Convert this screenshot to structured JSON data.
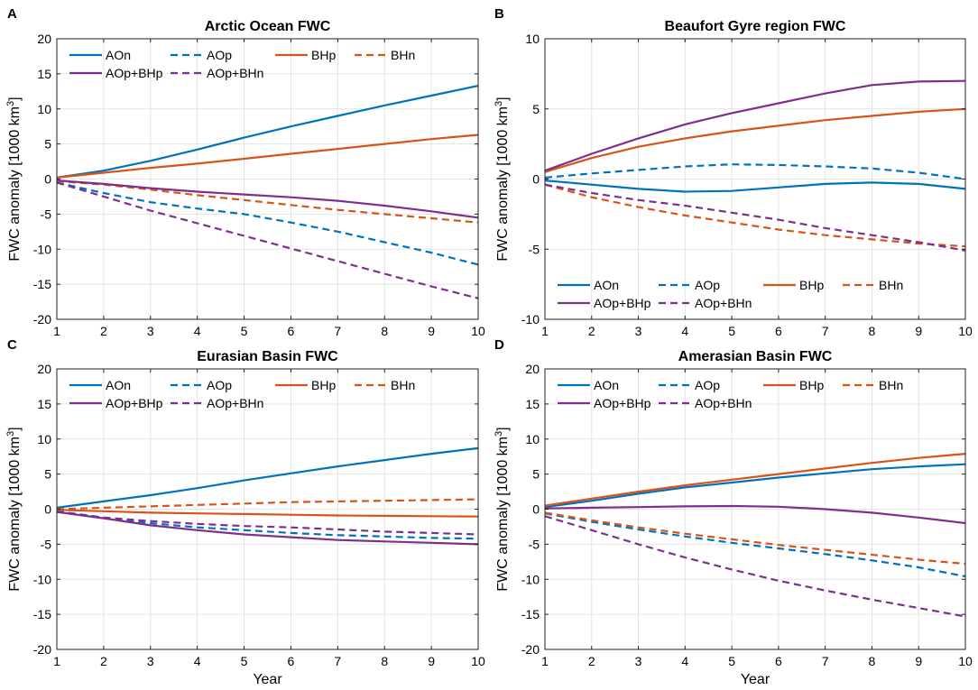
{
  "colors": {
    "AO": "#0072bd",
    "BH": "#d95319",
    "AOBH": "#7e2f8e"
  },
  "chart_data": [
    {
      "type": "line",
      "letter": "A",
      "title": "Arctic Ocean FWC",
      "xlabel": "",
      "ylabel": "FWC anomaly [1000 km",
      "ylabel_sup": "3",
      "ylabel_end": "]",
      "xlim": [
        1,
        10
      ],
      "ylim": [
        -20,
        20
      ],
      "xticks": [
        "1",
        "2",
        "3",
        "4",
        "5",
        "6",
        "7",
        "8",
        "9",
        "10"
      ],
      "yticks": [
        "20",
        "15",
        "10",
        "5",
        "0",
        "-5",
        "-10",
        "-15",
        "-20"
      ],
      "ytick_values": [
        20,
        15,
        10,
        5,
        0,
        -5,
        -10,
        -15,
        -20
      ],
      "legend": {
        "position": "top",
        "labels": [
          "AOn",
          "AOp",
          "BHp",
          "BHn",
          "AOp+BHp",
          "AOp+BHn"
        ]
      },
      "x": [
        1,
        2,
        3,
        4,
        5,
        6,
        7,
        8,
        9,
        10
      ],
      "series": [
        {
          "name": "AOn",
          "color": "AO",
          "dash": false,
          "values": [
            0.2,
            1.2,
            2.6,
            4.2,
            5.9,
            7.5,
            9.0,
            10.5,
            11.9,
            13.3
          ]
        },
        {
          "name": "AOp",
          "color": "AO",
          "dash": true,
          "values": [
            -0.5,
            -2.0,
            -3.3,
            -4.2,
            -5.0,
            -6.2,
            -7.5,
            -9.0,
            -10.5,
            -12.2
          ]
        },
        {
          "name": "BHp",
          "color": "BH",
          "dash": false,
          "values": [
            0.2,
            0.9,
            1.6,
            2.2,
            2.9,
            3.6,
            4.3,
            5.0,
            5.7,
            6.3
          ]
        },
        {
          "name": "BHn",
          "color": "BH",
          "dash": true,
          "values": [
            -0.3,
            -0.8,
            -1.5,
            -2.3,
            -3.0,
            -3.7,
            -4.4,
            -5.0,
            -5.6,
            -6.2
          ]
        },
        {
          "name": "AOp+BHp",
          "color": "AOBH",
          "dash": false,
          "values": [
            -0.2,
            -0.7,
            -1.3,
            -1.8,
            -2.2,
            -2.6,
            -3.1,
            -3.8,
            -4.6,
            -5.5
          ]
        },
        {
          "name": "AOp+BHn",
          "color": "AOBH",
          "dash": true,
          "values": [
            -0.5,
            -2.5,
            -4.5,
            -6.3,
            -8.1,
            -9.9,
            -11.7,
            -13.5,
            -15.3,
            -17.0
          ]
        }
      ]
    },
    {
      "type": "line",
      "letter": "B",
      "title": "Beaufort Gyre region FWC",
      "xlabel": "",
      "ylabel": "FWC anomaly [1000 km",
      "ylabel_sup": "3",
      "ylabel_end": "]",
      "xlim": [
        1,
        10
      ],
      "ylim": [
        -10,
        10
      ],
      "xticks": [
        "1",
        "2",
        "3",
        "4",
        "5",
        "6",
        "7",
        "8",
        "9",
        "10"
      ],
      "yticks": [
        "10",
        "5",
        "0",
        "-5",
        "-10"
      ],
      "ytick_values": [
        10,
        5,
        0,
        -5,
        -10
      ],
      "legend": {
        "position": "bottom",
        "labels": [
          "AOn",
          "AOp",
          "BHp",
          "BHn",
          "AOp+BHp",
          "AOp+BHn"
        ]
      },
      "x": [
        1,
        2,
        3,
        4,
        5,
        6,
        7,
        8,
        9,
        10
      ],
      "series": [
        {
          "name": "AOn",
          "color": "AO",
          "dash": false,
          "values": [
            -0.1,
            -0.4,
            -0.7,
            -0.9,
            -0.85,
            -0.6,
            -0.35,
            -0.25,
            -0.35,
            -0.7
          ]
        },
        {
          "name": "AOp",
          "color": "AO",
          "dash": true,
          "values": [
            0.1,
            0.4,
            0.65,
            0.9,
            1.05,
            1.0,
            0.9,
            0.75,
            0.45,
            0.0
          ]
        },
        {
          "name": "BHp",
          "color": "BH",
          "dash": false,
          "values": [
            0.5,
            1.5,
            2.3,
            2.9,
            3.4,
            3.8,
            4.2,
            4.5,
            4.8,
            5.0
          ]
        },
        {
          "name": "BHn",
          "color": "BH",
          "dash": true,
          "values": [
            -0.4,
            -1.3,
            -2.0,
            -2.6,
            -3.1,
            -3.6,
            -4.0,
            -4.3,
            -4.6,
            -4.8
          ]
        },
        {
          "name": "AOp+BHp",
          "color": "AOBH",
          "dash": false,
          "values": [
            0.6,
            1.8,
            2.9,
            3.9,
            4.7,
            5.4,
            6.1,
            6.7,
            6.95,
            7.0
          ]
        },
        {
          "name": "AOp+BHn",
          "color": "AOBH",
          "dash": true,
          "values": [
            -0.4,
            -1.0,
            -1.5,
            -1.9,
            -2.4,
            -2.9,
            -3.5,
            -4.0,
            -4.5,
            -5.1
          ]
        }
      ]
    },
    {
      "type": "line",
      "letter": "C",
      "title": "Eurasian Basin FWC",
      "xlabel": "Year",
      "ylabel": "FWC anomaly [1000 km",
      "ylabel_sup": "3",
      "ylabel_end": "]",
      "xlim": [
        1,
        10
      ],
      "ylim": [
        -20,
        20
      ],
      "xticks": [
        "1",
        "2",
        "3",
        "4",
        "5",
        "6",
        "7",
        "8",
        "9",
        "10"
      ],
      "yticks": [
        "20",
        "15",
        "10",
        "5",
        "0",
        "-5",
        "-10",
        "-15",
        "-20"
      ],
      "ytick_values": [
        20,
        15,
        10,
        5,
        0,
        -5,
        -10,
        -15,
        -20
      ],
      "legend": {
        "position": "top",
        "labels": [
          "AOn",
          "AOp",
          "BHp",
          "BHn",
          "AOp+BHp",
          "AOp+BHn"
        ]
      },
      "x": [
        1,
        2,
        3,
        4,
        5,
        6,
        7,
        8,
        9,
        10
      ],
      "series": [
        {
          "name": "AOn",
          "color": "AO",
          "dash": false,
          "values": [
            0.2,
            1.1,
            2.0,
            3.0,
            4.1,
            5.1,
            6.1,
            7.0,
            7.9,
            8.7
          ]
        },
        {
          "name": "AOp",
          "color": "AO",
          "dash": true,
          "values": [
            -0.3,
            -1.2,
            -2.0,
            -2.6,
            -3.0,
            -3.4,
            -3.7,
            -3.9,
            -4.1,
            -4.2
          ]
        },
        {
          "name": "BHp",
          "color": "BH",
          "dash": false,
          "values": [
            -0.1,
            -0.3,
            -0.5,
            -0.6,
            -0.7,
            -0.8,
            -0.9,
            -0.95,
            -1.0,
            -1.05
          ]
        },
        {
          "name": "BHn",
          "color": "BH",
          "dash": true,
          "values": [
            0.0,
            0.2,
            0.4,
            0.6,
            0.8,
            1.0,
            1.1,
            1.2,
            1.3,
            1.4
          ]
        },
        {
          "name": "AOp+BHp",
          "color": "AOBH",
          "dash": false,
          "values": [
            -0.4,
            -1.3,
            -2.3,
            -3.0,
            -3.6,
            -4.0,
            -4.4,
            -4.6,
            -4.8,
            -5.0
          ]
        },
        {
          "name": "AOp+BHn",
          "color": "AOBH",
          "dash": true,
          "values": [
            -0.4,
            -1.2,
            -1.7,
            -2.1,
            -2.4,
            -2.6,
            -2.9,
            -3.2,
            -3.4,
            -3.6
          ]
        }
      ]
    },
    {
      "type": "line",
      "letter": "D",
      "title": "Amerasian Basin FWC",
      "xlabel": "Year",
      "ylabel": "FWC anomaly [1000 km",
      "ylabel_sup": "3",
      "ylabel_end": "]",
      "xlim": [
        1,
        10
      ],
      "ylim": [
        -20,
        20
      ],
      "xticks": [
        "1",
        "2",
        "3",
        "4",
        "5",
        "6",
        "7",
        "8",
        "9",
        "10"
      ],
      "yticks": [
        "20",
        "15",
        "10",
        "5",
        "0",
        "-5",
        "-10",
        "-15",
        "-20"
      ],
      "ytick_values": [
        20,
        15,
        10,
        5,
        0,
        -5,
        -10,
        -15,
        -20
      ],
      "legend": {
        "position": "top",
        "labels": [
          "AOn",
          "AOp",
          "BHp",
          "BHn",
          "AOp+BHp",
          "AOp+BHn"
        ]
      },
      "x": [
        1,
        2,
        3,
        4,
        5,
        6,
        7,
        8,
        9,
        10
      ],
      "series": [
        {
          "name": "AOn",
          "color": "AO",
          "dash": false,
          "values": [
            0.3,
            1.2,
            2.2,
            3.1,
            3.8,
            4.5,
            5.1,
            5.7,
            6.1,
            6.4
          ]
        },
        {
          "name": "AOp",
          "color": "AO",
          "dash": true,
          "values": [
            -0.6,
            -1.8,
            -2.9,
            -3.9,
            -4.8,
            -5.6,
            -6.4,
            -7.3,
            -8.3,
            -9.6
          ]
        },
        {
          "name": "BHp",
          "color": "BH",
          "dash": false,
          "values": [
            0.5,
            1.5,
            2.5,
            3.4,
            4.2,
            5.0,
            5.8,
            6.6,
            7.3,
            7.9
          ]
        },
        {
          "name": "BHn",
          "color": "BH",
          "dash": true,
          "values": [
            -0.5,
            -1.6,
            -2.6,
            -3.5,
            -4.3,
            -5.1,
            -5.8,
            -6.5,
            -7.2,
            -7.8
          ]
        },
        {
          "name": "AOp+BHp",
          "color": "AOBH",
          "dash": false,
          "values": [
            0.1,
            0.2,
            0.3,
            0.4,
            0.45,
            0.35,
            0.0,
            -0.5,
            -1.2,
            -2.0
          ]
        },
        {
          "name": "AOp+BHn",
          "color": "AOBH",
          "dash": true,
          "values": [
            -1.0,
            -3.0,
            -5.0,
            -6.9,
            -8.6,
            -10.2,
            -11.6,
            -12.9,
            -14.1,
            -15.3
          ]
        }
      ]
    }
  ]
}
